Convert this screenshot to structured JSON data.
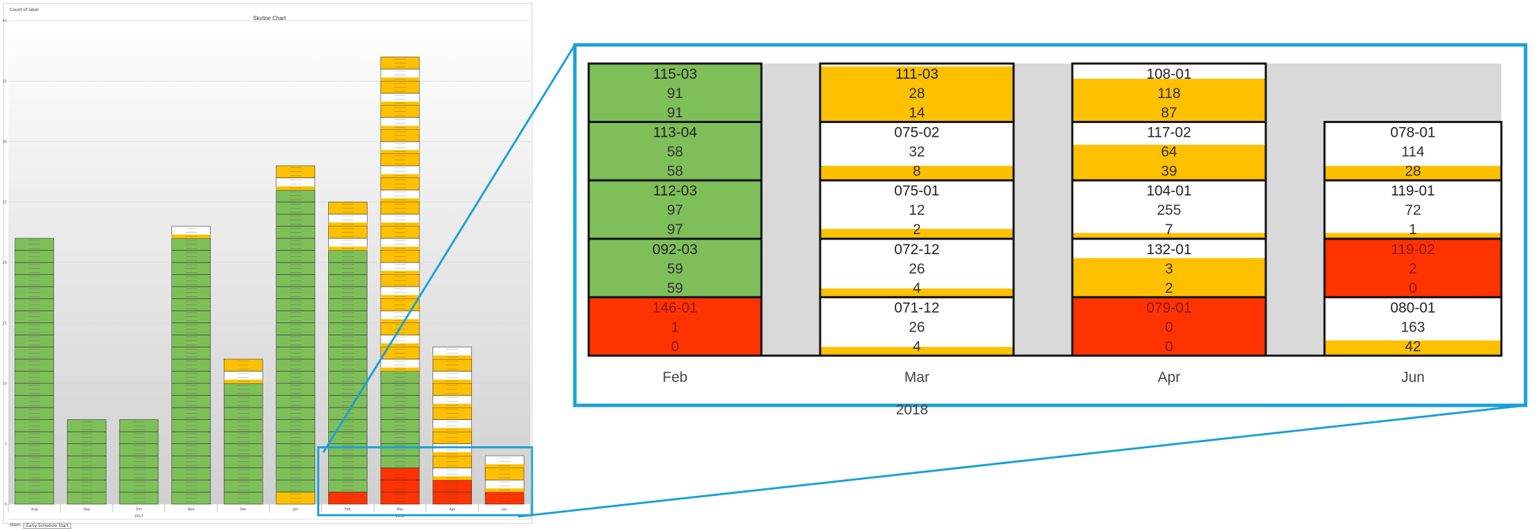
{
  "chart_data": [
    {
      "type": "bar",
      "title": "Skyline Chart",
      "y_axis_label": "Count of label",
      "ylim": [
        0,
        40
      ],
      "yticks": [
        0,
        5,
        10,
        15,
        20,
        25,
        30,
        35,
        40
      ],
      "grid": true,
      "months": [
        {
          "label": "Aug",
          "segments": 22,
          "greens": 22,
          "yellows": 0,
          "reds": 0,
          "lower_yellow": 0
        },
        {
          "label": "Sep",
          "segments": 7,
          "greens": 7,
          "yellows": 0,
          "reds": 0,
          "lower_yellow": 0
        },
        {
          "label": "Oct",
          "segments": 7,
          "greens": 7,
          "yellows": 0,
          "reds": 0,
          "lower_yellow": 0
        },
        {
          "label": "Nov",
          "segments": 23,
          "greens": 22,
          "yellows": 1,
          "reds": 0,
          "lower_yellow": 0
        },
        {
          "label": "Dec",
          "segments": 12,
          "greens": 10,
          "yellows": 2,
          "reds": 0,
          "lower_yellow": 0
        },
        {
          "label": "Jan",
          "segments": 28,
          "greens": 25,
          "yellows": 2,
          "reds": 0,
          "lower_yellow": 1
        },
        {
          "label": "Feb",
          "segments": 25,
          "greens": 20,
          "yellows": 4,
          "reds": 1,
          "lower_yellow": 0
        },
        {
          "label": "Mar",
          "segments": 37,
          "greens": 8,
          "yellows": 26,
          "reds": 3,
          "lower_yellow": 0
        },
        {
          "label": "Apr",
          "segments": 13,
          "greens": 0,
          "yellows": 11,
          "reds": 2,
          "lower_yellow": 0
        },
        {
          "label": "Jun",
          "segments": 4,
          "greens": 0,
          "yellows": 3,
          "reds": 1,
          "lower_yellow": 0
        }
      ],
      "year_labels": [
        {
          "label": "2017",
          "under": [
            "Aug",
            "Sep",
            "Oct",
            "Nov",
            "Dec"
          ]
        },
        {
          "label": "2018",
          "under": [
            "Jan",
            "Feb",
            "Mar",
            "Apr",
            "Jun"
          ]
        }
      ],
      "colors": {
        "green": "#7fbf5a",
        "yellow": "#ffc000",
        "red": "#ff3300",
        "white": "#ffffff",
        "grid": "#d9d9d9",
        "zoom_border": "#1aa0d8"
      }
    },
    {
      "type": "table",
      "title": "",
      "categories": [
        "Feb",
        "Mar",
        "Apr",
        "Jun"
      ],
      "year": "2018",
      "columns": [
        {
          "month": "Feb",
          "cells": [
            {
              "id": "115-03",
              "a": "91",
              "b": "91",
              "fill": "green"
            },
            {
              "id": "113-04",
              "a": "58",
              "b": "58",
              "fill": "green"
            },
            {
              "id": "112-03",
              "a": "97",
              "b": "97",
              "fill": "green"
            },
            {
              "id": "092-03",
              "a": "59",
              "b": "59",
              "fill": "green"
            },
            {
              "id": "146-01",
              "a": "1",
              "b": "0",
              "fill": "red"
            }
          ]
        },
        {
          "month": "Mar",
          "cells": [
            {
              "id": "111-03",
              "a": "28",
              "b": "14",
              "fill": "white",
              "yellow_frac": 0.95
            },
            {
              "id": "075-02",
              "a": "32",
              "b": "8",
              "fill": "white",
              "yellow_frac": 0.25
            },
            {
              "id": "075-01",
              "a": "12",
              "b": "2",
              "fill": "white",
              "yellow_frac": 0.17
            },
            {
              "id": "072-12",
              "a": "26",
              "b": "4",
              "fill": "white",
              "yellow_frac": 0.15
            },
            {
              "id": "071-12",
              "a": "26",
              "b": "4",
              "fill": "white",
              "yellow_frac": 0.15
            }
          ]
        },
        {
          "month": "Apr",
          "cells": [
            {
              "id": "108-01",
              "a": "118",
              "b": "87",
              "fill": "white",
              "yellow_frac": 0.74
            },
            {
              "id": "117-02",
              "a": "64",
              "b": "39",
              "fill": "white",
              "yellow_frac": 0.61
            },
            {
              "id": "104-01",
              "a": "255",
              "b": "7",
              "fill": "white",
              "yellow_frac": 0.03
            },
            {
              "id": "132-01",
              "a": "3",
              "b": "2",
              "fill": "white",
              "yellow_frac": 0.67
            },
            {
              "id": "079-01",
              "a": "0",
              "b": "0",
              "fill": "red"
            }
          ]
        },
        {
          "month": "Jun",
          "cells": [
            {
              "id": "",
              "a": "",
              "b": "",
              "fill": "none"
            },
            {
              "id": "078-01",
              "a": "114",
              "b": "28",
              "fill": "white",
              "yellow_frac": 0.25
            },
            {
              "id": "119-01",
              "a": "72",
              "b": "1",
              "fill": "white",
              "yellow_frac": 0.01
            },
            {
              "id": "119-02",
              "a": "2",
              "b": "0",
              "fill": "red"
            },
            {
              "id": "080-01",
              "a": "163",
              "b": "42",
              "fill": "white",
              "yellow_frac": 0.26
            }
          ]
        }
      ]
    }
  ],
  "footer": {
    "tab_stem": "Stem",
    "tab_schedule": "Early Schedule Start"
  }
}
